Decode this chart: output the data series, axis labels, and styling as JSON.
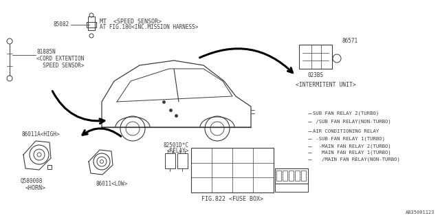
{
  "bg_color": "#ffffff",
  "line_color": "#3a3a3a",
  "fig_width": 6.4,
  "fig_height": 3.2,
  "dpi": 100,
  "font_family": "monospace",
  "watermark": "A835001123",
  "labels": {
    "speed_sensor_num": "85082",
    "speed_sensor_title": "MT  <SPEED SENSOR>",
    "speed_sensor_sub": "AT FIG.180<INC.MISSION HARNESS>",
    "cord_num": "81885N",
    "cord_line1": "<CORD EXTENTION",
    "cord_line2": "  SPEED SENSOR>",
    "intermittent_num": "86571",
    "intermittent_sub": "023BS",
    "intermittent_label": "<INTERMITENT UNIT>",
    "horn_label": "<HORN>",
    "horn_num": "Q580008",
    "high_label": "86011A<HIGH>",
    "low_label": "86011<LOW>",
    "relay_num": "82501D*C",
    "relay_label": "<RELAY>",
    "fusebox_label": "FIG.822 <FUSE BOX>",
    "relay_lines": [
      "SUB FAN RELAY 2(TURBO)",
      "/SUB FAN RELAY(NON-TURBO)",
      "AIR CONDITIONING RELAY",
      "-SUB FAN RELAY 1(TURBO)",
      "-MAIN FAN RELAY 2(TURBO)",
      "  MAIN FAN RELAY 1(TURBO)",
      "  /MAIN FAN RELAY(NON-TURBO)"
    ]
  }
}
